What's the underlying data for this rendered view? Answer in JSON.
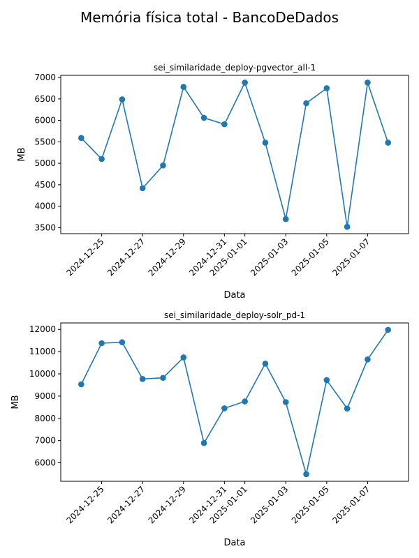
{
  "figure_title": "Memória física total - BancoDeDados",
  "style": {
    "line_color": "#1f77b4",
    "axis_color": "#000000"
  },
  "chart_data": [
    {
      "type": "line",
      "title": "sei_similaridade_deploy-pgvector_all-1",
      "xlabel": "Data",
      "ylabel": "MB",
      "x": [
        "2024-12-24",
        "2024-12-25",
        "2024-12-26",
        "2024-12-27",
        "2024-12-28",
        "2024-12-29",
        "2024-12-30",
        "2024-12-31",
        "2025-01-01",
        "2025-01-02",
        "2025-01-03",
        "2025-01-04",
        "2025-01-05",
        "2025-01-06",
        "2025-01-07",
        "2025-01-08"
      ],
      "series": [
        {
          "values": [
            5590,
            5100,
            6490,
            4420,
            4950,
            6780,
            6060,
            5910,
            6880,
            5480,
            3700,
            6400,
            6750,
            3520,
            6880,
            5480
          ]
        }
      ],
      "xlim": [
        "2024-12-23",
        "2025-01-09"
      ],
      "ylim": [
        3360,
        7050
      ],
      "yticks": [
        3500,
        4000,
        4500,
        5000,
        5500,
        6000,
        6500,
        7000
      ],
      "xticks": [
        "2024-12-25",
        "2024-12-27",
        "2024-12-29",
        "2024-12-31",
        "2025-01-01",
        "2025-01-03",
        "2025-01-05",
        "2025-01-07"
      ],
      "grid": false,
      "legend": "none"
    },
    {
      "type": "line",
      "title": "sei_similaridade_deploy-solr_pd-1",
      "xlabel": "Data",
      "ylabel": "MB",
      "x": [
        "2024-12-24",
        "2024-12-25",
        "2024-12-26",
        "2024-12-27",
        "2024-12-28",
        "2024-12-29",
        "2024-12-30",
        "2024-12-31",
        "2025-01-01",
        "2025-01-02",
        "2025-01-03",
        "2025-01-04",
        "2025-01-05",
        "2025-01-06",
        "2025-01-07",
        "2025-01-08"
      ],
      "series": [
        {
          "values": [
            9530,
            11380,
            11420,
            9770,
            9820,
            10740,
            6890,
            8450,
            8760,
            10460,
            8730,
            5490,
            9720,
            8440,
            10650,
            11980
          ]
        }
      ],
      "xlim": [
        "2024-12-23",
        "2025-01-09"
      ],
      "ylim": [
        5170,
        12290
      ],
      "yticks": [
        6000,
        7000,
        8000,
        9000,
        10000,
        11000,
        12000
      ],
      "xticks": [
        "2024-12-25",
        "2024-12-27",
        "2024-12-29",
        "2024-12-31",
        "2025-01-01",
        "2025-01-03",
        "2025-01-05",
        "2025-01-07"
      ],
      "grid": false,
      "legend": "none"
    }
  ]
}
